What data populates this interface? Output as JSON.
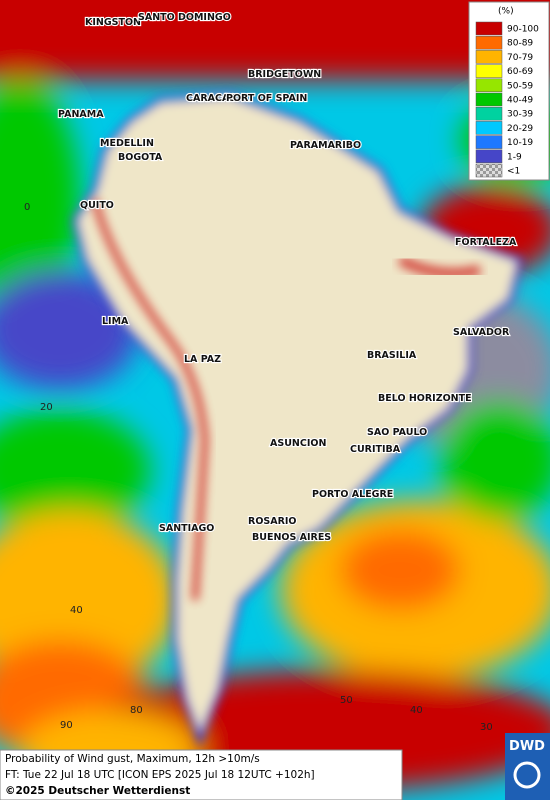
{
  "map": {
    "cities": [
      "KINGSTON",
      "SANTO DOMINGO",
      "BRIDGETOWN",
      "PANAMA",
      "CARACAS",
      "PORT OF SPAIN",
      "MEDELLIN",
      "BOGOTA",
      "PARAMARIBO",
      "QUITO",
      "FORTALEZA",
      "LIMA",
      "SALVADOR",
      "LA PAZ",
      "BRASILIA",
      "BELO HORIZONTE",
      "ASUNCION",
      "SAO PAULO",
      "CURITIBA",
      "PORTO ALEGRE",
      "ROSARIO",
      "SANTIAGO",
      "BUENOS AIRES"
    ],
    "grid_labels": [
      "0",
      "20",
      "40",
      "90",
      "80",
      "50",
      "40",
      "30"
    ]
  },
  "legend": {
    "title": "(%)",
    "items": [
      {
        "label": "90-100",
        "color": "#c80000"
      },
      {
        "label": "80-89",
        "color": "#ff6a00"
      },
      {
        "label": "70-79",
        "color": "#ffb400"
      },
      {
        "label": "60-69",
        "color": "#ffff00"
      },
      {
        "label": "50-59",
        "color": "#96e600"
      },
      {
        "label": "40-49",
        "color": "#00c800"
      },
      {
        "label": "30-39",
        "color": "#00d2a0"
      },
      {
        "label": "20-29",
        "color": "#00c8ff"
      },
      {
        "label": "10-19",
        "color": "#1e78ff"
      },
      {
        "label": "1-9",
        "color": "#4646c8"
      },
      {
        "label": "<1",
        "color": "#b4b4b4"
      }
    ]
  },
  "footer": {
    "line1": "Probability of Wind gust, Maximum, 12h >10m/s",
    "line2": "FT: Tue 22 Jul 18 UTC [ICON EPS 2025 Jul 18 12UTC +102h]",
    "line3": "©2025 Deutscher Wetterdienst",
    "logo": "DWD"
  }
}
